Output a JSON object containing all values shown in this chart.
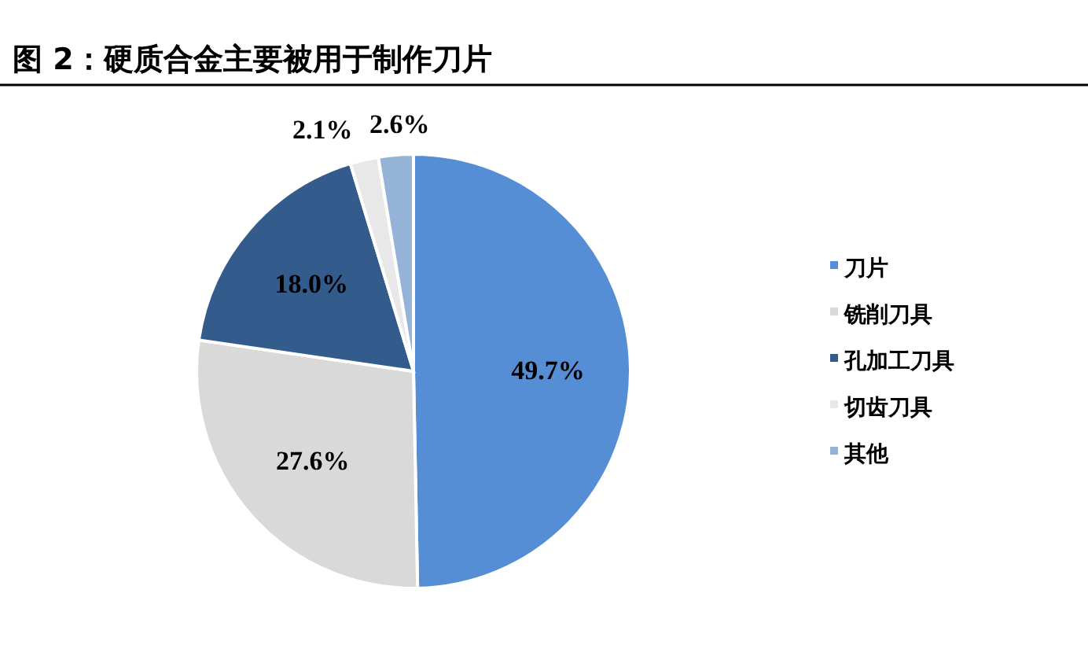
{
  "chart_data": {
    "type": "pie",
    "title": "图 2：硬质合金主要被用于制作刀片",
    "categories": [
      "刀片",
      "铣削刀具",
      "孔加工刀具",
      "切齿刀具",
      "其他"
    ],
    "values": [
      49.7,
      27.6,
      18.0,
      2.1,
      2.6
    ],
    "colors": [
      "#558ed5",
      "#d9d9d9",
      "#335b8c",
      "#e8e8e8",
      "#95b3d7"
    ],
    "value_labels": [
      "49.7%",
      "27.6%",
      "18.0%",
      "2.1%",
      "2.6%"
    ],
    "legend": "right"
  }
}
